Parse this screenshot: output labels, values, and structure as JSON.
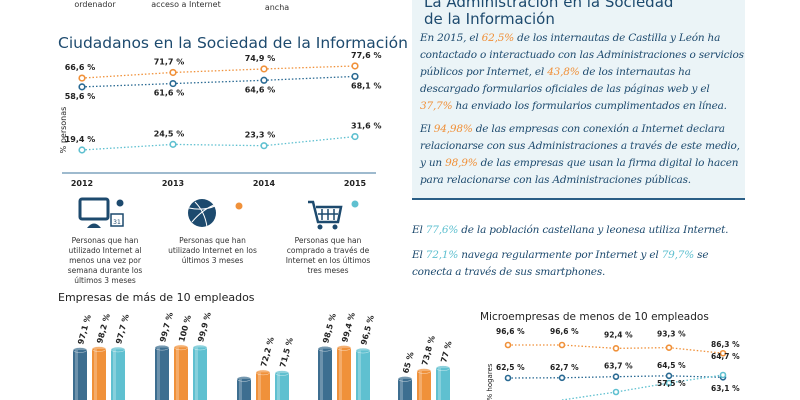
{
  "top_labels": [
    "ordenador",
    "acceso a Internet",
    "ancha"
  ],
  "admin_box": {
    "title_line1": "La Administración en la Sociedad",
    "title_line2": "de la Información",
    "p1": [
      {
        "t": "En 2015, el "
      },
      {
        "t": "62,5%",
        "h": "o"
      },
      {
        "t": " de los internautas de Castilla y León ha contactado o interactuado con las Administraciones o servicios públicos por Internet, el "
      },
      {
        "t": "43,8%",
        "h": "o"
      },
      {
        "t": " de los internautas ha descargado formularios oficiales de las páginas web y el "
      },
      {
        "t": "37,7%",
        "h": "o"
      },
      {
        "t": " ha enviado los formularios cumplimentados en línea."
      }
    ],
    "p2": [
      {
        "t": "El "
      },
      {
        "t": "94,98%",
        "h": "o"
      },
      {
        "t": " de las empresas con conexión a Internet declara relacionarse con sus Administraciones a través de este medio, y un "
      },
      {
        "t": "98,9%",
        "h": "o"
      },
      {
        "t": " de las empresas que usan la firma digital lo hacen para relacionarse con las Administraciones públicas."
      }
    ]
  },
  "facts": {
    "p1": [
      {
        "t": "El "
      },
      {
        "t": "77,6%",
        "h": "c"
      },
      {
        "t": " de la población castellana y leonesa utiliza Internet."
      }
    ],
    "p2": [
      {
        "t": "El "
      },
      {
        "t": "72,1%",
        "h": "c"
      },
      {
        "t": " navega regularmente por Internet y el "
      },
      {
        "t": "79,7%",
        "h": "c"
      },
      {
        "t": " se conecta a través de sus smartphones."
      }
    ]
  },
  "legend_items": [
    {
      "icon": "computer-calendar-icon",
      "color": "#1d4a6e",
      "label": "Personas que han utilizado Internet al menos una vez por semana durante los últimos 3 meses"
    },
    {
      "icon": "globe-icon",
      "color": "#f0913a",
      "label": "Personas que han utilizado Internet en los últimos 3 meses"
    },
    {
      "icon": "shopping-cart-icon",
      "color": "#5fc0d0",
      "label": "Personas que han comprado a través de Internet en los últimos tres meses"
    }
  ],
  "chart_data": [
    {
      "type": "line",
      "title": "Ciudadanos en la Sociedad de la Información",
      "ylabel": "% personas",
      "categories": [
        "2012",
        "2013",
        "2014",
        "2015"
      ],
      "series": [
        {
          "color": "#f0913a",
          "values": [
            66.6,
            71.7,
            74.9,
            77.6
          ],
          "labels": [
            "66,6 %",
            "71,7 %",
            "74,9 %",
            "77,6 %"
          ]
        },
        {
          "color": "#2a6a93",
          "values": [
            58.6,
            61.6,
            64.6,
            68.1
          ],
          "labels": [
            "58,6 %",
            "61,6 %",
            "64,6 %",
            "68,1 %"
          ]
        },
        {
          "color": "#5fc0d0",
          "values": [
            19.4,
            24.5,
            23.3,
            31.6
          ],
          "labels": [
            "19,4 %",
            "24,5 %",
            "23,3 %",
            "31,6 %"
          ]
        }
      ]
    },
    {
      "type": "bar",
      "title": "Empresas de más de 10 empleados",
      "series": [
        {
          "color": "#3d6e90",
          "values": [
            97.1,
            99.7,
            null,
            98.5,
            65
          ],
          "labels": [
            "97,1 %",
            "99,7 %",
            "",
            "98,5 %",
            "65 %"
          ]
        },
        {
          "color": "#f0913a",
          "values": [
            98.2,
            100,
            72.2,
            99.4,
            73.8
          ],
          "labels": [
            "98,2 %",
            "100 %",
            "72,2 %",
            "99,4 %",
            "73,8 %"
          ]
        },
        {
          "color": "#5fc0d0",
          "values": [
            97.7,
            99.9,
            71.5,
            96.5,
            77
          ],
          "labels": [
            "97,7 %",
            "99,9 %",
            "71,5 %",
            "96,5 %",
            "77 %"
          ]
        }
      ]
    },
    {
      "type": "line",
      "title": "Microempresas de menos de 10 empleados",
      "ylabel": "% hogares",
      "series": [
        {
          "color": "#f0913a",
          "values": [
            96.6,
            96.6,
            92.4,
            93.3,
            86.3
          ],
          "labels": [
            "96,6 %",
            "96,6 %",
            "92,4 %",
            "93,3 %",
            "86,3 %"
          ]
        },
        {
          "color": "#2a6a93",
          "values": [
            62.5,
            62.7,
            63.7,
            64.5,
            63.1
          ],
          "labels": [
            "62,5 %",
            "62,7 %",
            "63,7 %",
            "64,5 %",
            "63,1 %"
          ]
        },
        {
          "color": "#5fc0d0",
          "values": [
            null,
            null,
            null,
            57.5,
            64.7
          ],
          "labels": [
            "",
            "",
            "",
            "57,5 %",
            "64,7 %"
          ]
        }
      ]
    }
  ]
}
